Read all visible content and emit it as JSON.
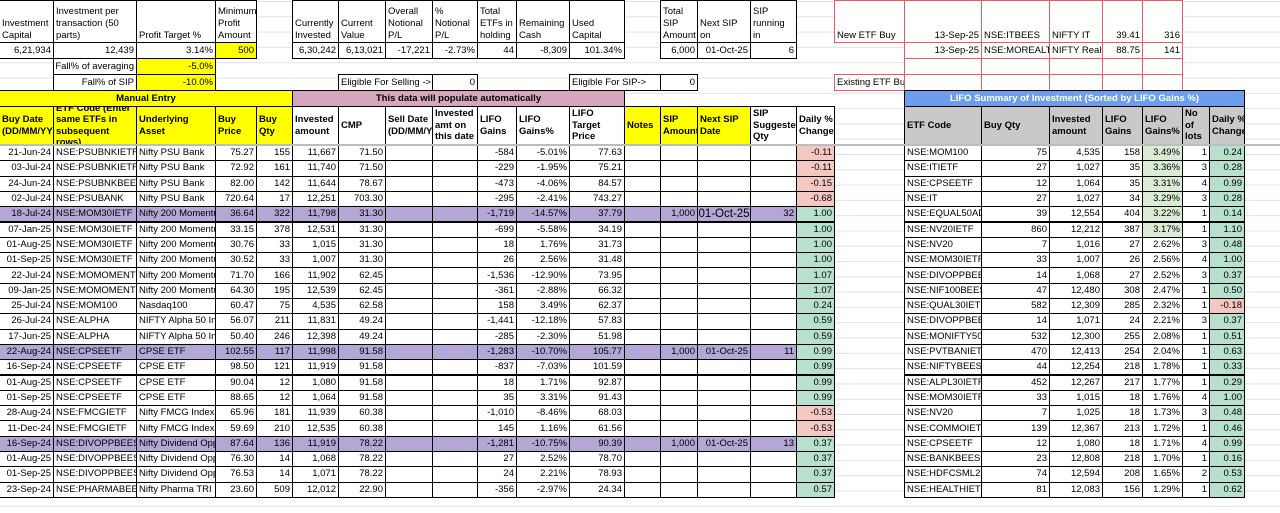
{
  "summary": {
    "headers": {
      "investment_capital": "Investment Capital",
      "investment_per_transaction": "Investment per transaction (50 parts)",
      "profit_target": "Profit Target %",
      "minimum_profit": "Minimum Profit Amount",
      "currently_invested": "Currently Invested",
      "current_value": "Current Value",
      "overall_pl": "Overall Notional P/L",
      "pct_pl": "% Notional P/L",
      "total_etfs": "Total ETFs in holding",
      "remaining_cash": "Remaining Cash",
      "used_capital": "Used Capital",
      "total_sip": "Total SIP Amount",
      "next_sip_on": "Next SIP on",
      "sip_running_in": "SIP running in"
    },
    "values": {
      "investment_capital": "6,21,934",
      "investment_per_transaction": "12,439",
      "profit_target": "3.14%",
      "minimum_profit": "500",
      "currently_invested": "6,30,242",
      "current_value": "6,13,021",
      "overall_pl": "-17,221",
      "pct_pl": "-2.73%",
      "total_etfs": "44",
      "remaining_cash": "-8,309",
      "used_capital": "101.34%",
      "total_sip": "6,000",
      "next_sip_on": "01-Oct-25",
      "sip_running_in": "6"
    },
    "fall_averaging_label": "Fall% of averaging",
    "fall_averaging_value": "-5.0%",
    "fall_sip_label": "Fall% of SIP",
    "fall_sip_value": "-10.0%",
    "eligible_selling_label": "Eligible For Selling ->",
    "eligible_selling_value": "0",
    "eligible_sip_label": "Eligible For SIP->",
    "eligible_sip_value": "0"
  },
  "new_etf": {
    "new_label": "New ETF Buy",
    "existing_label": "Existing ETF Buy",
    "rows": [
      [
        "13-Sep-25",
        "NSE:ITBEES",
        "NIFTY IT",
        "39.41",
        "316"
      ],
      [
        "13-Sep-25",
        "NSE:MOREALTY",
        "NIFTY Realty",
        "88.75",
        "141"
      ]
    ]
  },
  "main_table": {
    "manual_banner": "Manual Entry",
    "auto_banner": "This data will populate automatically",
    "columns": [
      "Buy Date (DD/MM/YYYY)",
      "ETF Code (Enter same ETFs in subsequent rows)",
      "Underlying Asset",
      "Buy Price",
      "Buy Qty",
      "Invested amount",
      "CMP",
      "Sell Date (DD/MM/YYYY)",
      "Invested amt on this date",
      "LIFO Gains",
      "LIFO Gains%",
      "LIFO Target Price",
      "Notes",
      "SIP Amount",
      "Next SIP Date",
      "SIP Suggested Qty",
      "Daily % Change"
    ],
    "rows": [
      [
        "21-Jun-24",
        "NSE:PSUBNKIETF",
        "Nifty PSU Bank",
        "75.27",
        "155",
        "11,667",
        "71.50",
        "",
        "",
        "-584",
        "-5.01%",
        "77.63",
        "",
        "",
        "",
        "",
        "-0.11"
      ],
      [
        "03-Jul-24",
        "NSE:PSUBNKIETF",
        "Nifty PSU Bank",
        "72.92",
        "161",
        "11,740",
        "71.50",
        "",
        "",
        "-229",
        "-1.95%",
        "75.21",
        "",
        "",
        "",
        "",
        "-0.11"
      ],
      [
        "24-Jun-24",
        "NSE:PSUBNKBEES",
        "Nifty PSU Bank",
        "82.00",
        "142",
        "11,644",
        "78.67",
        "",
        "",
        "-473",
        "-4.06%",
        "84.57",
        "",
        "",
        "",
        "",
        "-0.15"
      ],
      [
        "02-Jul-24",
        "NSE:PSUBANK",
        "Nifty PSU Bank",
        "720.64",
        "17",
        "12,251",
        "703.30",
        "",
        "",
        "-295",
        "-2.41%",
        "743.27",
        "",
        "",
        "",
        "",
        "-0.68"
      ],
      [
        "18-Jul-24",
        "NSE:MOM30IETF",
        "Nifty 200 Momentur",
        "36.64",
        "322",
        "11,798",
        "31.30",
        "",
        "",
        "-1,719",
        "-14.57%",
        "37.79",
        "",
        "1,000",
        "01-Oct-25",
        "32",
        "1.00"
      ],
      [
        "07-Jan-25",
        "NSE:MOM30IETF",
        "Nifty 200 Momentur",
        "33.15",
        "378",
        "12,531",
        "31.30",
        "",
        "",
        "-699",
        "-5.58%",
        "34.19",
        "",
        "",
        "",
        "",
        "1.00"
      ],
      [
        "01-Aug-25",
        "NSE:MOM30IETF",
        "Nifty 200 Momentur",
        "30.76",
        "33",
        "1,015",
        "31.30",
        "",
        "",
        "18",
        "1.76%",
        "31.73",
        "",
        "",
        "",
        "",
        "1.00"
      ],
      [
        "01-Sep-25",
        "NSE:MOM30IETF",
        "Nifty 200 Momentur",
        "30.52",
        "33",
        "1,007",
        "31.30",
        "",
        "",
        "26",
        "2.56%",
        "31.48",
        "",
        "",
        "",
        "",
        "1.00"
      ],
      [
        "22-Jul-24",
        "NSE:MOMOMENTUM",
        "Nifty 200 Momentur",
        "71.70",
        "166",
        "11,902",
        "62.45",
        "",
        "",
        "-1,536",
        "-12.90%",
        "73.95",
        "",
        "",
        "",
        "",
        "1.07"
      ],
      [
        "09-Jan-25",
        "NSE:MOMOMENTUM",
        "Nifty 200 Momentur",
        "64.30",
        "195",
        "12,539",
        "62.45",
        "",
        "",
        "-361",
        "-2.88%",
        "66.32",
        "",
        "",
        "",
        "",
        "1.07"
      ],
      [
        "25-Jul-24",
        "NSE:MOM100",
        "Nasdaq100",
        "60.47",
        "75",
        "4,535",
        "62.58",
        "",
        "",
        "158",
        "3.49%",
        "62.37",
        "",
        "",
        "",
        "",
        "0.24"
      ],
      [
        "26-Jul-24",
        "NSE:ALPHA",
        "NIFTY Alpha 50 Inde",
        "56.07",
        "211",
        "11,831",
        "49.24",
        "",
        "",
        "-1,441",
        "-12.18%",
        "57.83",
        "",
        "",
        "",
        "",
        "0.59"
      ],
      [
        "17-Jun-25",
        "NSE:ALPHA",
        "NIFTY Alpha 50 Inde",
        "50.40",
        "246",
        "12,398",
        "49.24",
        "",
        "",
        "-285",
        "-2.30%",
        "51.98",
        "",
        "",
        "",
        "",
        "0.59"
      ],
      [
        "22-Aug-24",
        "NSE:CPSEETF",
        "CPSE ETF",
        "102.55",
        "117",
        "11,998",
        "91.58",
        "",
        "",
        "-1,283",
        "-10.70%",
        "105.77",
        "",
        "1,000",
        "01-Oct-25",
        "11",
        "0.99"
      ],
      [
        "16-Sep-24",
        "NSE:CPSEETF",
        "CPSE ETF",
        "98.50",
        "121",
        "11,919",
        "91.58",
        "",
        "",
        "-837",
        "-7.03%",
        "101.59",
        "",
        "",
        "",
        "",
        "0.99"
      ],
      [
        "01-Aug-25",
        "NSE:CPSEETF",
        "CPSE ETF",
        "90.04",
        "12",
        "1,080",
        "91.58",
        "",
        "",
        "18",
        "1.71%",
        "92.87",
        "",
        "",
        "",
        "",
        "0.99"
      ],
      [
        "01-Sep-25",
        "NSE:CPSEETF",
        "CPSE ETF",
        "88.65",
        "12",
        "1,064",
        "91.58",
        "",
        "",
        "35",
        "3.31%",
        "91.43",
        "",
        "",
        "",
        "",
        "0.99"
      ],
      [
        "28-Aug-24",
        "NSE:FMCGIETF",
        "Nifty FMCG Index",
        "65.96",
        "181",
        "11,939",
        "60.38",
        "",
        "",
        "-1,010",
        "-8.46%",
        "68.03",
        "",
        "",
        "",
        "",
        "-0.53"
      ],
      [
        "11-Dec-24",
        "NSE:FMCGIETF",
        "Nifty FMCG Index",
        "59.69",
        "210",
        "12,535",
        "60.38",
        "",
        "",
        "145",
        "1.16%",
        "61.56",
        "",
        "",
        "",
        "",
        "-0.53"
      ],
      [
        "16-Sep-24",
        "NSE:DIVOPPBEES",
        "Nifty Dividend Oppo",
        "87.64",
        "136",
        "11,919",
        "78.22",
        "",
        "",
        "-1,281",
        "-10.75%",
        "90.39",
        "",
        "1,000",
        "01-Oct-25",
        "13",
        "0.37"
      ],
      [
        "01-Aug-25",
        "NSE:DIVOPPBEES",
        "Nifty Dividend Oppo",
        "76.30",
        "14",
        "1,068",
        "78.22",
        "",
        "",
        "27",
        "2.52%",
        "78.70",
        "",
        "",
        "",
        "",
        "0.37"
      ],
      [
        "01-Sep-25",
        "NSE:DIVOPPBEES",
        "Nifty Dividend Oppo",
        "76.53",
        "14",
        "1,071",
        "78.22",
        "",
        "",
        "24",
        "2.21%",
        "78.93",
        "",
        "",
        "",
        "",
        "0.37"
      ],
      [
        "23-Sep-24",
        "NSE:PHARMABEES",
        "Nifty Pharma TRI",
        "23.60",
        "509",
        "12,012",
        "22.90",
        "",
        "",
        "-356",
        "-2.97%",
        "24.34",
        "",
        "",
        "",
        "",
        "0.57"
      ]
    ],
    "highlighted_rows": [
      4,
      13,
      19
    ]
  },
  "lifo_summary": {
    "title": "LIFO Summary of Investment (Sorted by LIFO Gains %)",
    "columns": [
      "ETF Code",
      "Buy Qty",
      "Invested amount",
      "LIFO Gains",
      "LIFO Gains%",
      "No of lots",
      "Daily % Change"
    ],
    "rows": [
      [
        "NSE:MOM100",
        "75",
        "4,535",
        "158",
        "3.49%",
        "1",
        "0.24"
      ],
      [
        "NSE:ITIETF",
        "27",
        "1,027",
        "35",
        "3.36%",
        "3",
        "0.28"
      ],
      [
        "NSE:CPSEETF",
        "12",
        "1,064",
        "35",
        "3.31%",
        "4",
        "0.99"
      ],
      [
        "NSE:IT",
        "27",
        "1,027",
        "34",
        "3.29%",
        "3",
        "0.28"
      ],
      [
        "NSE:EQUAL50ADD",
        "39",
        "12,554",
        "404",
        "3.22%",
        "1",
        "0.14"
      ],
      [
        "NSE:NV20IETF",
        "860",
        "12,212",
        "387",
        "3.17%",
        "1",
        "1.10"
      ],
      [
        "NSE:NV20",
        "7",
        "1,016",
        "27",
        "2.62%",
        "3",
        "0.48"
      ],
      [
        "NSE:MOM30IETF",
        "33",
        "1,007",
        "26",
        "2.56%",
        "4",
        "1.00"
      ],
      [
        "NSE:DIVOPPBEES",
        "14",
        "1,068",
        "27",
        "2.52%",
        "3",
        "0.37"
      ],
      [
        "NSE:NIF100BEES",
        "47",
        "12,480",
        "308",
        "2.47%",
        "1",
        "0.50"
      ],
      [
        "NSE:QUAL30IETF",
        "582",
        "12,309",
        "285",
        "2.32%",
        "1",
        "-0.18"
      ],
      [
        "NSE:DIVOPPBEES",
        "14",
        "1,071",
        "24",
        "2.21%",
        "3",
        "0.37"
      ],
      [
        "NSE:MONIFTY500",
        "532",
        "12,300",
        "255",
        "2.08%",
        "1",
        "0.51"
      ],
      [
        "NSE:PVTBANIETF",
        "470",
        "12,413",
        "254",
        "2.04%",
        "1",
        "0.63"
      ],
      [
        "NSE:NIFTYBEES",
        "44",
        "12,254",
        "218",
        "1.78%",
        "1",
        "0.33"
      ],
      [
        "NSE:ALPL30IETF",
        "452",
        "12,267",
        "217",
        "1.77%",
        "1",
        "0.29"
      ],
      [
        "NSE:MOM30IETF",
        "33",
        "1,015",
        "18",
        "1.76%",
        "4",
        "1.00"
      ],
      [
        "NSE:NV20",
        "7",
        "1,025",
        "18",
        "1.73%",
        "3",
        "0.48"
      ],
      [
        "NSE:COMMOIETF",
        "139",
        "12,367",
        "213",
        "1.72%",
        "1",
        "0.46"
      ],
      [
        "NSE:CPSEETF",
        "12",
        "1,080",
        "18",
        "1.71%",
        "4",
        "0.99"
      ],
      [
        "NSE:BANKBEES",
        "23",
        "12,808",
        "218",
        "1.70%",
        "1",
        "0.16"
      ],
      [
        "NSE:HDFCSML250",
        "74",
        "12,594",
        "208",
        "1.65%",
        "2",
        "0.53"
      ],
      [
        "NSE:HEALTHIETF",
        "81",
        "12,083",
        "156",
        "1.29%",
        "1",
        "0.62"
      ]
    ]
  },
  "colors": {
    "yellow": "#ffff00",
    "pink": "#d5a6bd",
    "purple": "#b4a7d6",
    "positive": "#b7e1cd",
    "negative": "#f4c7c3",
    "banner_blue": "#6d9eeb",
    "header_gray": "#c9c9c9"
  }
}
